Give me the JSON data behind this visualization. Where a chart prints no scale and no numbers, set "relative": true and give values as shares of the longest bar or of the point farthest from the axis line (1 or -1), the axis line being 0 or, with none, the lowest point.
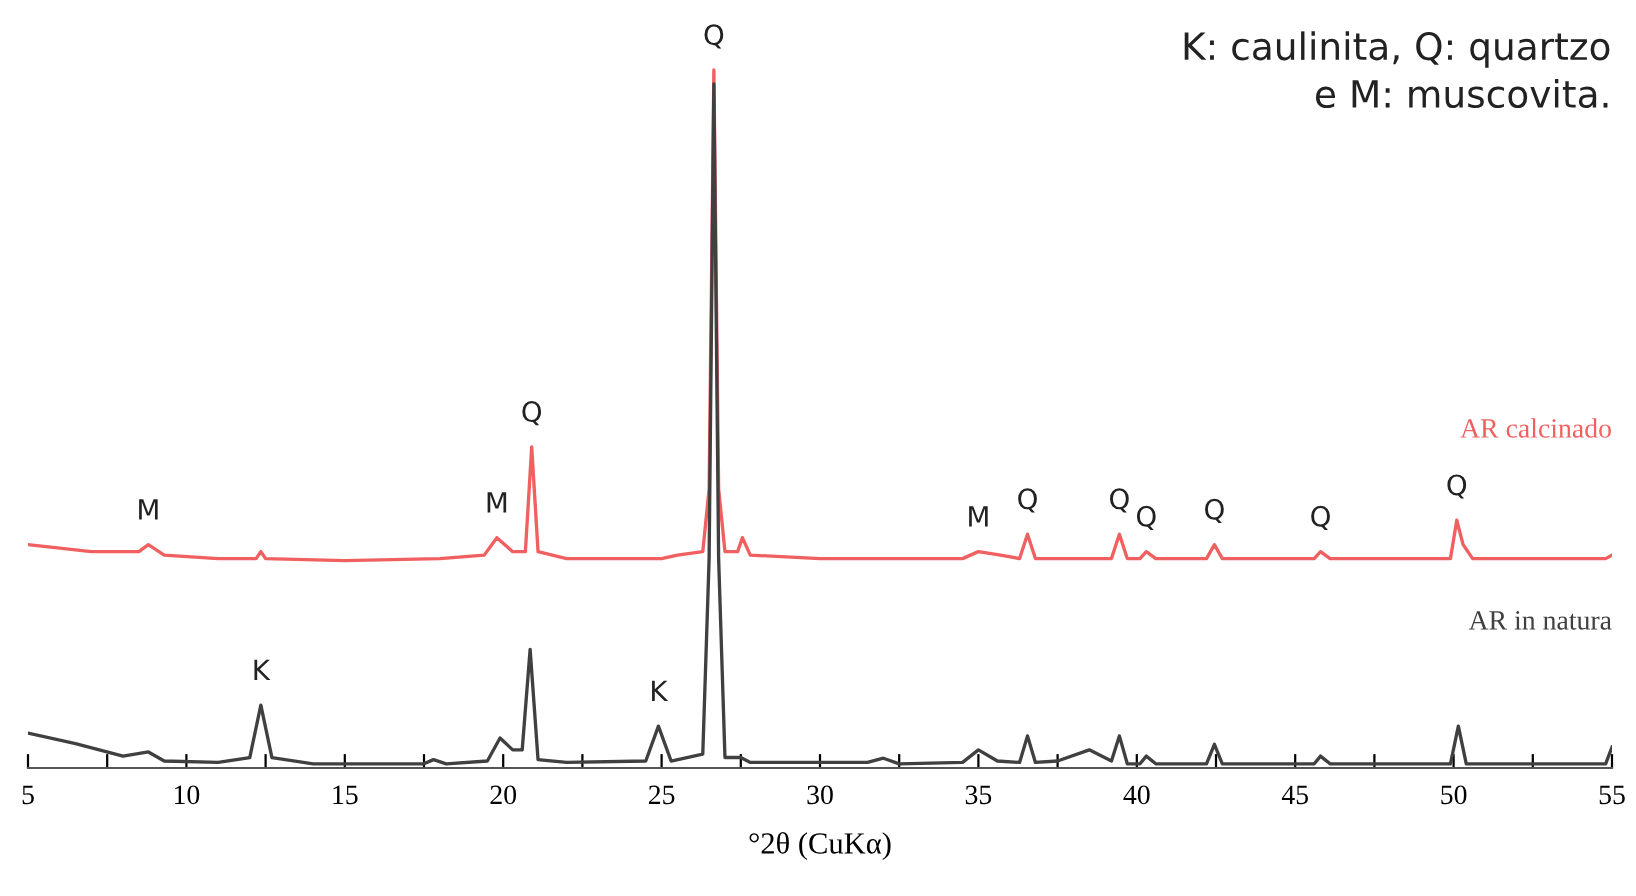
{
  "chart_data": {
    "type": "line",
    "relative": true,
    "xlabel": "°2θ (CuKα)",
    "xlim": [
      5,
      55
    ],
    "xticks": [
      5,
      {
        "value": 7.5,
        "label": null
      },
      10,
      {
        "value": 12.5,
        "label": null
      },
      15,
      {
        "value": 17.5,
        "label": null
      },
      20,
      {
        "value": 22.5,
        "label": null
      },
      25,
      {
        "value": 27.5,
        "label": null
      },
      30,
      {
        "value": 32.5,
        "label": null
      },
      35,
      {
        "value": 37.5,
        "label": null
      },
      40,
      {
        "value": 42.5,
        "label": null
      },
      45,
      {
        "value": 47.5,
        "label": null
      },
      50,
      {
        "value": 52.5,
        "label": null
      },
      55
    ],
    "tick_labels": "x",
    "grid": false,
    "legend": false,
    "marker": "none",
    "line_style": "solid",
    "series": [
      {
        "name": "AR calcinado",
        "color": "#f06060",
        "x": [
          5,
          7,
          8.5,
          8.8,
          9.3,
          11,
          12.2,
          12.35,
          12.5,
          15,
          18,
          19.4,
          19.8,
          20.3,
          20.7,
          20.9,
          21.1,
          22,
          25,
          25.5,
          26.3,
          26.5,
          26.65,
          26.8,
          27.0,
          27.4,
          27.55,
          27.8,
          30,
          33,
          34.5,
          35,
          35.7,
          36.3,
          36.55,
          36.8,
          39.2,
          39.45,
          39.7,
          40.1,
          40.3,
          40.6,
          42.2,
          42.45,
          42.7,
          45.6,
          45.8,
          46.1,
          49.9,
          50.1,
          50.3,
          50.6,
          54.8,
          55
        ],
        "values": [
          0.32,
          0.31,
          0.31,
          0.32,
          0.305,
          0.3,
          0.3,
          0.31,
          0.3,
          0.297,
          0.3,
          0.305,
          0.33,
          0.31,
          0.31,
          0.46,
          0.31,
          0.3,
          0.3,
          0.305,
          0.31,
          0.4,
          1.0,
          0.4,
          0.31,
          0.31,
          0.33,
          0.305,
          0.3,
          0.3,
          0.3,
          0.31,
          0.305,
          0.3,
          0.335,
          0.3,
          0.3,
          0.335,
          0.3,
          0.3,
          0.31,
          0.3,
          0.3,
          0.32,
          0.3,
          0.3,
          0.31,
          0.3,
          0.3,
          0.355,
          0.32,
          0.3,
          0.3,
          0.305
        ]
      },
      {
        "name": "AR in natura",
        "color": "#404040",
        "x": [
          5,
          6.5,
          8,
          8.8,
          9.3,
          11,
          12,
          12.35,
          12.7,
          14,
          17.5,
          17.8,
          18.2,
          19.5,
          19.9,
          20.3,
          20.6,
          20.85,
          21.1,
          22,
          24.5,
          24.9,
          25.3,
          26.3,
          26.5,
          26.65,
          26.8,
          27.0,
          27.5,
          27.8,
          31.5,
          32,
          32.5,
          34.5,
          35,
          35.6,
          36.3,
          36.55,
          36.8,
          37.5,
          38.5,
          39.2,
          39.45,
          39.7,
          40.1,
          40.3,
          40.6,
          42.2,
          42.45,
          42.7,
          45.6,
          45.8,
          46.1,
          49.9,
          50.15,
          50.4,
          54.8,
          55
        ],
        "values": [
          0.05,
          0.035,
          0.017,
          0.023,
          0.01,
          0.008,
          0.015,
          0.09,
          0.015,
          0.006,
          0.006,
          0.012,
          0.006,
          0.01,
          0.043,
          0.026,
          0.026,
          0.17,
          0.012,
          0.008,
          0.01,
          0.06,
          0.01,
          0.02,
          0.3,
          0.98,
          0.3,
          0.015,
          0.015,
          0.008,
          0.008,
          0.014,
          0.006,
          0.008,
          0.026,
          0.01,
          0.008,
          0.046,
          0.008,
          0.01,
          0.026,
          0.01,
          0.046,
          0.006,
          0.006,
          0.017,
          0.006,
          0.006,
          0.034,
          0.006,
          0.006,
          0.017,
          0.006,
          0.006,
          0.06,
          0.006,
          0.006,
          0.03
        ]
      }
    ],
    "annotations": [
      {
        "text": "M",
        "x": 8.8,
        "y": 0.32
      },
      {
        "text": "M",
        "x": 19.8,
        "y": 0.33
      },
      {
        "text": "Q",
        "x": 20.9,
        "y": 0.46
      },
      {
        "text": "Q",
        "x": 26.65,
        "y": 1.0
      },
      {
        "text": "K",
        "x": 12.35,
        "y": 0.09
      },
      {
        "text": "K",
        "x": 24.9,
        "y": 0.06
      },
      {
        "text": "M",
        "x": 35,
        "y": 0.31
      },
      {
        "text": "Q",
        "x": 36.55,
        "y": 0.335
      },
      {
        "text": "Q",
        "x": 39.45,
        "y": 0.335
      },
      {
        "text": "Q",
        "x": 40.3,
        "y": 0.31
      },
      {
        "text": "Q",
        "x": 42.45,
        "y": 0.32
      },
      {
        "text": "Q",
        "x": 45.8,
        "y": 0.31
      },
      {
        "text": "Q",
        "x": 50.1,
        "y": 0.355
      },
      "K: caulinita, Q: quartzo\ne M: muscovita."
    ]
  }
}
